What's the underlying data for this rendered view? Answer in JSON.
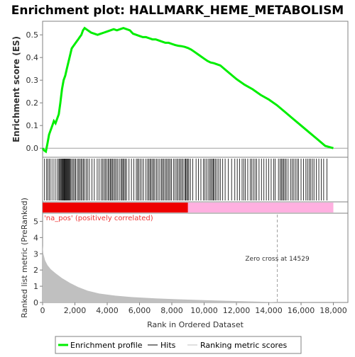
{
  "chart_data": {
    "type": "line",
    "title": "Enrichment plot: HALLMARK_HEME_METABOLISM",
    "colors": {
      "es_line": "#00ee00",
      "hits": "#000000",
      "metric_fill": "#c0c0c0",
      "zero_cross_line": "#a0a0a0",
      "positive_label": "#ee3333",
      "bar_red": "#ee0000",
      "bar_pink": "#ffb0e0",
      "legend_hit_line": "#000000",
      "legend_metric_line": "#c0c0c0"
    },
    "es_panel": {
      "ylabel": "Enrichment score (ES)",
      "ylim": [
        -0.04,
        0.56
      ],
      "yticks": [
        "0.0",
        "0.1",
        "0.2",
        "0.3",
        "0.4",
        "0.5"
      ],
      "ytick_values": [
        0.0,
        0.1,
        0.2,
        0.3,
        0.4,
        0.5
      ],
      "x": [
        0,
        100,
        200,
        300,
        400,
        500,
        600,
        700,
        800,
        900,
        1000,
        1100,
        1200,
        1300,
        1400,
        1500,
        1600,
        1700,
        1800,
        1900,
        2000,
        2100,
        2200,
        2300,
        2400,
        2500,
        2600,
        2700,
        2800,
        2900,
        3000,
        3200,
        3400,
        3600,
        3800,
        4000,
        4200,
        4400,
        4600,
        4800,
        5000,
        5200,
        5400,
        5600,
        5800,
        6000,
        6200,
        6400,
        6600,
        6800,
        7000,
        7200,
        7400,
        7600,
        7800,
        8000,
        8200,
        8400,
        8600,
        8800,
        9000,
        9200,
        9400,
        9600,
        9800,
        10000,
        10200,
        10400,
        10600,
        10800,
        11000,
        11500,
        12000,
        12500,
        13000,
        13500,
        14000,
        14500,
        15000,
        15500,
        16000,
        16500,
        17000,
        17500,
        18000
      ],
      "y": [
        0.0,
        -0.01,
        -0.015,
        0.02,
        0.06,
        0.08,
        0.1,
        0.12,
        0.11,
        0.13,
        0.15,
        0.2,
        0.26,
        0.3,
        0.32,
        0.35,
        0.38,
        0.41,
        0.44,
        0.45,
        0.46,
        0.47,
        0.48,
        0.49,
        0.5,
        0.52,
        0.53,
        0.525,
        0.52,
        0.515,
        0.51,
        0.505,
        0.5,
        0.505,
        0.51,
        0.515,
        0.52,
        0.525,
        0.52,
        0.525,
        0.53,
        0.525,
        0.52,
        0.505,
        0.5,
        0.495,
        0.49,
        0.49,
        0.485,
        0.48,
        0.48,
        0.475,
        0.47,
        0.465,
        0.465,
        0.46,
        0.455,
        0.452,
        0.45,
        0.447,
        0.442,
        0.435,
        0.425,
        0.415,
        0.405,
        0.395,
        0.385,
        0.378,
        0.375,
        0.37,
        0.365,
        0.335,
        0.305,
        0.28,
        0.26,
        0.235,
        0.215,
        0.19,
        0.16,
        0.13,
        0.1,
        0.07,
        0.04,
        0.01,
        0.0
      ]
    },
    "hits": [
      120,
      250,
      330,
      420,
      520,
      650,
      780,
      900,
      1000,
      1050,
      1100,
      1150,
      1200,
      1230,
      1280,
      1320,
      1360,
      1400,
      1440,
      1480,
      1520,
      1560,
      1600,
      1650,
      1700,
      1750,
      1820,
      1900,
      1980,
      2050,
      2150,
      2230,
      2300,
      2380,
      2450,
      2530,
      2600,
      2700,
      2800,
      2900,
      3050,
      3200,
      3380,
      3500,
      3620,
      3720,
      3800,
      3880,
      3960,
      4050,
      4120,
      4200,
      4260,
      4320,
      4400,
      4480,
      4560,
      4650,
      4750,
      4850,
      4920,
      4980,
      5050,
      5120,
      5200,
      5350,
      5500,
      5650,
      5800,
      5880,
      5950,
      6050,
      6150,
      6250,
      6400,
      6500,
      6580,
      6650,
      6720,
      6800,
      6880,
      6950,
      7050,
      7150,
      7250,
      7350,
      7420,
      7500,
      7580,
      7660,
      7740,
      7820,
      7900,
      7980,
      8100,
      8200,
      8300,
      8380,
      8460,
      8540,
      8620,
      8700,
      8800,
      8860,
      8920,
      8980,
      9050,
      9150,
      9300,
      9500,
      9650,
      9800,
      9950,
      10050,
      10150,
      10250,
      10350,
      10420,
      10500,
      10560,
      10620,
      10700,
      10800,
      10900,
      11000,
      11150,
      11300,
      11500,
      11700,
      11900,
      12050,
      12200,
      12350,
      12450,
      12550,
      12700,
      12850,
      12950,
      13050,
      13150,
      13250,
      13400,
      13550,
      13700,
      13850,
      14000,
      14150,
      14300,
      14400,
      14600,
      14700,
      14780,
      14850,
      14920,
      15000,
      15080,
      15200,
      15350,
      15450,
      15550,
      15650,
      15750,
      15850,
      16000,
      16150,
      16300,
      16400,
      16500,
      16600,
      16700,
      16800,
      16950,
      17100,
      17250,
      17400,
      17600
    ],
    "ranking_bar": {
      "positive_label": "'na_pos' (positively correlated)",
      "red_until": 9000,
      "pink_until": 18000
    },
    "metric_panel": {
      "ylabel": "Ranked list metric (PreRanked)",
      "ylim": [
        0,
        5.5
      ],
      "yticks": [
        "0",
        "1",
        "2",
        "3",
        "4",
        "5"
      ],
      "ytick_values": [
        0,
        1,
        2,
        3,
        4,
        5
      ],
      "x": [
        0,
        50,
        150,
        300,
        500,
        800,
        1200,
        1700,
        2200,
        2800,
        3500,
        4500,
        5500,
        7000,
        8500,
        10000,
        11500,
        13000,
        14000,
        14529
      ],
      "y": [
        3.5,
        3.0,
        2.6,
        2.3,
        2.05,
        1.8,
        1.5,
        1.2,
        0.95,
        0.72,
        0.55,
        0.42,
        0.33,
        0.25,
        0.19,
        0.14,
        0.1,
        0.06,
        0.03,
        0.0
      ],
      "zero_cross_value": 14529,
      "zero_cross_label": "Zero cross at 14529"
    },
    "xaxis": {
      "xlabel": "Rank in Ordered Dataset",
      "xlim": [
        0,
        18900
      ],
      "xticks": [
        "0",
        "2,000",
        "4,000",
        "6,000",
        "8,000",
        "10,000",
        "12,000",
        "14,000",
        "16,000",
        "18,000"
      ],
      "xtick_values": [
        0,
        2000,
        4000,
        6000,
        8000,
        10000,
        12000,
        14000,
        16000,
        18000
      ]
    },
    "legend": {
      "position": "bottom",
      "entries": [
        "Enrichment profile",
        "Hits",
        "Ranking metric scores"
      ]
    }
  }
}
